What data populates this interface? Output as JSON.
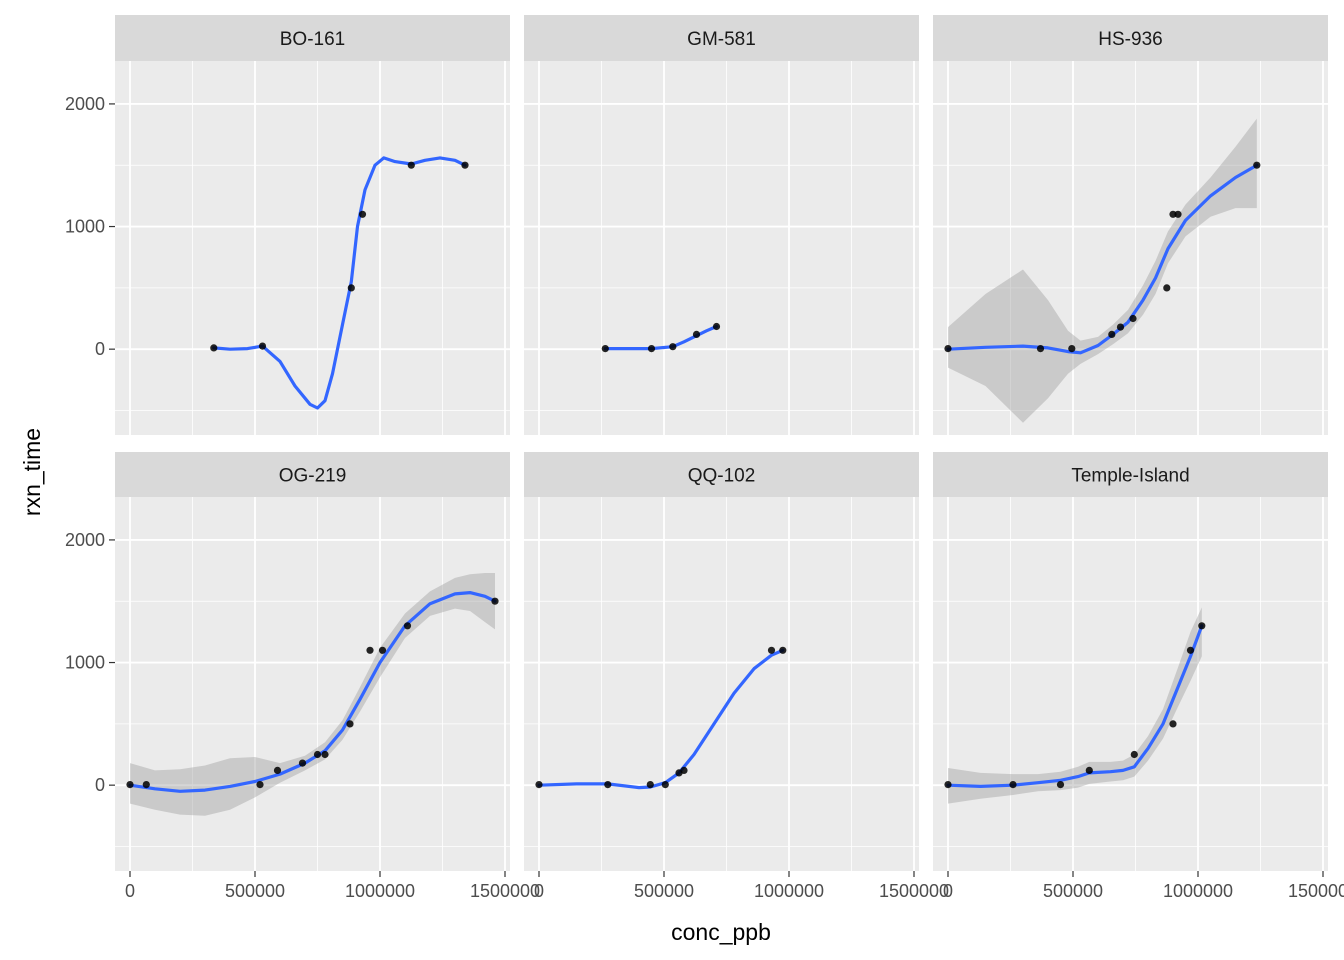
{
  "colors": {
    "panel_bg": "#EBEBEB",
    "strip_bg": "#D9D9D9",
    "grid_major": "#FFFFFF",
    "smooth_line": "#3366FF",
    "ribbon": "#999999",
    "point": "#000000"
  },
  "chart_data": {
    "type": "scatter",
    "facet_layout": "2 rows x 3 columns",
    "xlabel": "conc_ppb",
    "ylabel": "rxn_time",
    "xlim": [
      -60000,
      1520000
    ],
    "ylim": [
      -700,
      2350
    ],
    "x_ticks": [
      0,
      500000,
      1000000,
      1500000
    ],
    "x_tick_labels": [
      "0",
      "500000",
      "1000000",
      "1500000"
    ],
    "y_ticks": [
      0,
      1000,
      2000
    ],
    "y_tick_labels": [
      "0",
      "1000",
      "2000"
    ],
    "grid": true,
    "smoother": "loess with confidence band",
    "panels": [
      {
        "name": "BO-161",
        "points": [
          [
            335000,
            10
          ],
          [
            530000,
            25
          ],
          [
            885000,
            500
          ],
          [
            930000,
            1100
          ],
          [
            1125000,
            1500
          ],
          [
            1340000,
            1500
          ]
        ],
        "smooth": [
          [
            335000,
            10
          ],
          [
            400000,
            0
          ],
          [
            470000,
            5
          ],
          [
            530000,
            25
          ],
          [
            600000,
            -100
          ],
          [
            660000,
            -300
          ],
          [
            720000,
            -450
          ],
          [
            750000,
            -480
          ],
          [
            780000,
            -420
          ],
          [
            810000,
            -200
          ],
          [
            850000,
            200
          ],
          [
            885000,
            550
          ],
          [
            910000,
            1000
          ],
          [
            940000,
            1300
          ],
          [
            980000,
            1500
          ],
          [
            1015000,
            1560
          ],
          [
            1060000,
            1530
          ],
          [
            1125000,
            1510
          ],
          [
            1180000,
            1540
          ],
          [
            1240000,
            1560
          ],
          [
            1300000,
            1540
          ],
          [
            1340000,
            1500
          ]
        ],
        "ribbon": null
      },
      {
        "name": "GM-581",
        "points": [
          [
            265000,
            5
          ],
          [
            450000,
            5
          ],
          [
            535000,
            20
          ],
          [
            630000,
            120
          ],
          [
            710000,
            185
          ]
        ],
        "smooth": [
          [
            265000,
            5
          ],
          [
            360000,
            5
          ],
          [
            450000,
            5
          ],
          [
            535000,
            20
          ],
          [
            580000,
            60
          ],
          [
            630000,
            110
          ],
          [
            670000,
            150
          ],
          [
            710000,
            185
          ]
        ],
        "ribbon": null
      },
      {
        "name": "HS-936",
        "points": [
          [
            0,
            5
          ],
          [
            370000,
            5
          ],
          [
            495000,
            5
          ],
          [
            655000,
            120
          ],
          [
            690000,
            180
          ],
          [
            740000,
            250
          ],
          [
            875000,
            500
          ],
          [
            900000,
            1100
          ],
          [
            920000,
            1100
          ],
          [
            1235000,
            1500
          ]
        ],
        "smooth": [
          [
            0,
            0
          ],
          [
            150000,
            15
          ],
          [
            300000,
            25
          ],
          [
            400000,
            10
          ],
          [
            480000,
            -20
          ],
          [
            530000,
            -30
          ],
          [
            600000,
            30
          ],
          [
            660000,
            120
          ],
          [
            720000,
            220
          ],
          [
            780000,
            400
          ],
          [
            830000,
            580
          ],
          [
            880000,
            820
          ],
          [
            950000,
            1050
          ],
          [
            1050000,
            1250
          ],
          [
            1150000,
            1400
          ],
          [
            1235000,
            1500
          ]
        ],
        "ribbon": [
          [
            0,
            -150,
            180
          ],
          [
            150000,
            -300,
            450
          ],
          [
            300000,
            -600,
            650
          ],
          [
            400000,
            -400,
            400
          ],
          [
            480000,
            -200,
            150
          ],
          [
            530000,
            -120,
            70
          ],
          [
            600000,
            -40,
            100
          ],
          [
            660000,
            40,
            200
          ],
          [
            720000,
            130,
            320
          ],
          [
            780000,
            280,
            520
          ],
          [
            830000,
            450,
            720
          ],
          [
            880000,
            700,
            960
          ],
          [
            950000,
            920,
            1180
          ],
          [
            1050000,
            1080,
            1400
          ],
          [
            1150000,
            1150,
            1650
          ],
          [
            1235000,
            1150,
            1880
          ]
        ]
      },
      {
        "name": "OG-219",
        "points": [
          [
            0,
            5
          ],
          [
            65000,
            5
          ],
          [
            520000,
            5
          ],
          [
            590000,
            120
          ],
          [
            690000,
            180
          ],
          [
            750000,
            250
          ],
          [
            780000,
            250
          ],
          [
            880000,
            500
          ],
          [
            960000,
            1100
          ],
          [
            1010000,
            1100
          ],
          [
            1110000,
            1300
          ],
          [
            1460000,
            1500
          ]
        ],
        "smooth": [
          [
            0,
            0
          ],
          [
            100000,
            -30
          ],
          [
            200000,
            -50
          ],
          [
            300000,
            -40
          ],
          [
            400000,
            -10
          ],
          [
            500000,
            30
          ],
          [
            600000,
            90
          ],
          [
            700000,
            180
          ],
          [
            780000,
            280
          ],
          [
            850000,
            450
          ],
          [
            920000,
            700
          ],
          [
            1000000,
            1000
          ],
          [
            1100000,
            1300
          ],
          [
            1200000,
            1480
          ],
          [
            1300000,
            1560
          ],
          [
            1360000,
            1570
          ],
          [
            1420000,
            1540
          ],
          [
            1460000,
            1500
          ]
        ],
        "ribbon": [
          [
            0,
            -150,
            180
          ],
          [
            100000,
            -200,
            120
          ],
          [
            200000,
            -240,
            130
          ],
          [
            300000,
            -250,
            160
          ],
          [
            400000,
            -200,
            220
          ],
          [
            500000,
            -100,
            230
          ],
          [
            600000,
            20,
            180
          ],
          [
            700000,
            120,
            240
          ],
          [
            780000,
            210,
            350
          ],
          [
            850000,
            370,
            530
          ],
          [
            920000,
            600,
            800
          ],
          [
            1000000,
            880,
            1120
          ],
          [
            1100000,
            1200,
            1400
          ],
          [
            1200000,
            1380,
            1580
          ],
          [
            1300000,
            1440,
            1690
          ],
          [
            1360000,
            1420,
            1720
          ],
          [
            1420000,
            1330,
            1730
          ],
          [
            1460000,
            1270,
            1730
          ]
        ]
      },
      {
        "name": "QQ-102",
        "points": [
          [
            0,
            5
          ],
          [
            275000,
            5
          ],
          [
            445000,
            5
          ],
          [
            505000,
            5
          ],
          [
            560000,
            100
          ],
          [
            580000,
            120
          ],
          [
            930000,
            1100
          ],
          [
            975000,
            1100
          ]
        ],
        "smooth": [
          [
            0,
            0
          ],
          [
            150000,
            10
          ],
          [
            275000,
            10
          ],
          [
            400000,
            -20
          ],
          [
            445000,
            -15
          ],
          [
            505000,
            20
          ],
          [
            560000,
            100
          ],
          [
            620000,
            250
          ],
          [
            700000,
            500
          ],
          [
            780000,
            750
          ],
          [
            860000,
            950
          ],
          [
            930000,
            1060
          ],
          [
            975000,
            1100
          ]
        ],
        "ribbon": null
      },
      {
        "name": "Temple-Island",
        "points": [
          [
            0,
            5
          ],
          [
            260000,
            5
          ],
          [
            450000,
            5
          ],
          [
            565000,
            120
          ],
          [
            745000,
            250
          ],
          [
            900000,
            500
          ],
          [
            970000,
            1100
          ],
          [
            1015000,
            1300
          ]
        ],
        "smooth": [
          [
            0,
            0
          ],
          [
            130000,
            -10
          ],
          [
            260000,
            0
          ],
          [
            360000,
            20
          ],
          [
            450000,
            40
          ],
          [
            520000,
            70
          ],
          [
            565000,
            100
          ],
          [
            650000,
            110
          ],
          [
            700000,
            120
          ],
          [
            745000,
            150
          ],
          [
            800000,
            300
          ],
          [
            860000,
            500
          ],
          [
            920000,
            800
          ],
          [
            970000,
            1050
          ],
          [
            1015000,
            1300
          ]
        ],
        "ribbon": [
          [
            0,
            -150,
            140
          ],
          [
            130000,
            -110,
            100
          ],
          [
            260000,
            -80,
            90
          ],
          [
            360000,
            -50,
            90
          ],
          [
            450000,
            -40,
            110
          ],
          [
            520000,
            -20,
            150
          ],
          [
            565000,
            10,
            190
          ],
          [
            650000,
            30,
            190
          ],
          [
            700000,
            40,
            200
          ],
          [
            745000,
            70,
            250
          ],
          [
            800000,
            200,
            400
          ],
          [
            860000,
            380,
            620
          ],
          [
            920000,
            640,
            960
          ],
          [
            970000,
            850,
            1250
          ],
          [
            1015000,
            1050,
            1450
          ]
        ]
      }
    ]
  }
}
